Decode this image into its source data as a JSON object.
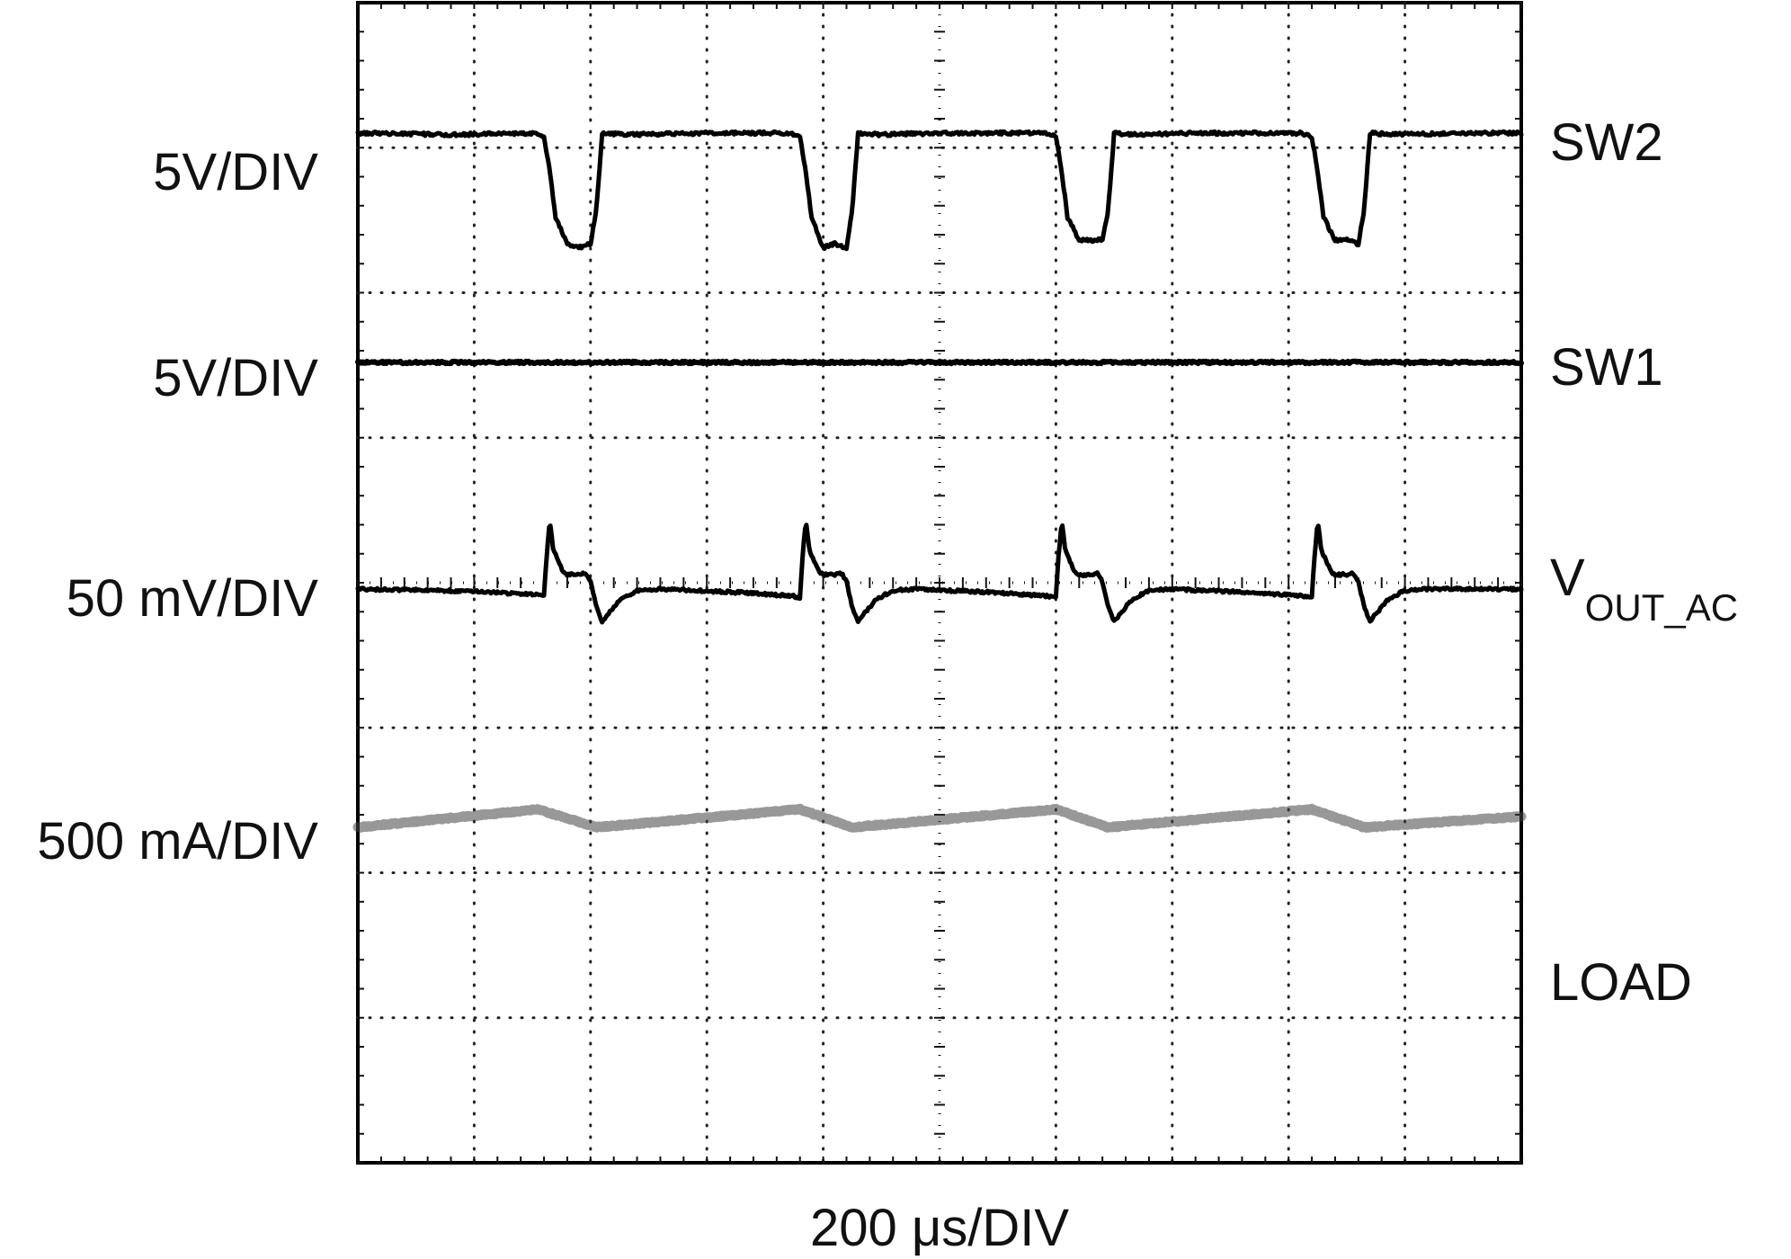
{
  "chart_data": {
    "type": "line",
    "title": "",
    "time_scale_label": "200 μs/DIV",
    "x_unit": "µs",
    "xlim": [
      0,
      2000
    ],
    "divisions": {
      "x": 10,
      "y": 8
    },
    "grid": true,
    "series": [
      {
        "name": "SW2",
        "scale_label": "5V/DIV",
        "color": "#000000",
        "x": [
          0,
          80,
          150,
          160,
          165,
          170,
          180,
          190,
          200,
          205,
          210,
          230,
          300,
          370,
          380,
          385,
          390,
          400,
          410,
          420,
          425,
          430,
          450,
          500,
          590,
          600,
          605,
          610,
          620,
          630,
          640,
          645,
          650,
          670,
          720,
          810,
          820,
          825,
          830,
          840,
          850,
          860,
          865,
          870,
          890,
          950,
          1000
        ],
        "values": [
          0.0,
          0.02,
          0.0,
          0.05,
          0.5,
          1.1,
          1.45,
          1.5,
          1.45,
          1.0,
          0.0,
          0.02,
          0.0,
          0.0,
          0.05,
          0.5,
          1.1,
          1.5,
          1.45,
          1.5,
          1.0,
          0.0,
          0.02,
          0.0,
          0.0,
          0.05,
          0.5,
          1.1,
          1.4,
          1.4,
          1.4,
          1.0,
          0.0,
          0.02,
          0.0,
          0.0,
          0.05,
          0.5,
          1.1,
          1.4,
          1.4,
          1.45,
          1.0,
          0.0,
          0.02,
          0.0,
          0.0
        ]
      },
      {
        "name": "SW1",
        "scale_label": "5V/DIV",
        "color": "#000000",
        "x": [
          0,
          250,
          500,
          750,
          1000
        ],
        "values": [
          0.0,
          0.0,
          0.0,
          0.0,
          0.0
        ]
      },
      {
        "name": "V_OUT_AC",
        "label_main": "V",
        "label_sub": "OUT_AC",
        "scale_label": "50 mV/DIV",
        "color": "#000000",
        "x": [
          0,
          100,
          155,
          160,
          162,
          165,
          168,
          172,
          176,
          180,
          190,
          196,
          200,
          205,
          210,
          215,
          225,
          240,
          260,
          330,
          375,
          380,
          382,
          385,
          388,
          392,
          396,
          400,
          410,
          416,
          420,
          425,
          430,
          435,
          445,
          460,
          480,
          550,
          595,
          600,
          602,
          605,
          608,
          612,
          616,
          620,
          630,
          636,
          640,
          645,
          650,
          655,
          665,
          680,
          700,
          770,
          815,
          820,
          822,
          825,
          828,
          832,
          836,
          840,
          850,
          856,
          860,
          865,
          870,
          875,
          885,
          900,
          920,
          1000
        ],
        "values": [
          0.0,
          0.03,
          0.08,
          0.1,
          -0.4,
          -0.95,
          -0.55,
          -0.4,
          -0.25,
          -0.2,
          -0.2,
          -0.22,
          -0.1,
          0.25,
          0.45,
          0.35,
          0.15,
          0.02,
          0.0,
          0.05,
          0.1,
          0.12,
          -0.4,
          -0.95,
          -0.55,
          -0.4,
          -0.25,
          -0.2,
          -0.2,
          -0.22,
          -0.1,
          0.25,
          0.45,
          0.35,
          0.15,
          0.02,
          0.0,
          0.05,
          0.1,
          0.12,
          -0.4,
          -0.95,
          -0.55,
          -0.4,
          -0.25,
          -0.2,
          -0.2,
          -0.22,
          -0.1,
          0.25,
          0.45,
          0.35,
          0.15,
          0.02,
          0.0,
          0.05,
          0.1,
          0.12,
          -0.4,
          -0.95,
          -0.55,
          -0.4,
          -0.25,
          -0.2,
          -0.2,
          -0.22,
          -0.1,
          0.25,
          0.45,
          0.35,
          0.15,
          0.02,
          0.0,
          0.0
        ]
      },
      {
        "name": "LOAD",
        "scale_label": "500 mA/DIV",
        "color": "#444444",
        "x": [
          0,
          155,
          205,
          380,
          425,
          600,
          645,
          820,
          865,
          1000
        ],
        "values": [
          0.1,
          -0.15,
          0.1,
          -0.15,
          0.1,
          -0.15,
          0.1,
          -0.15,
          0.1,
          -0.05
        ]
      }
    ]
  }
}
